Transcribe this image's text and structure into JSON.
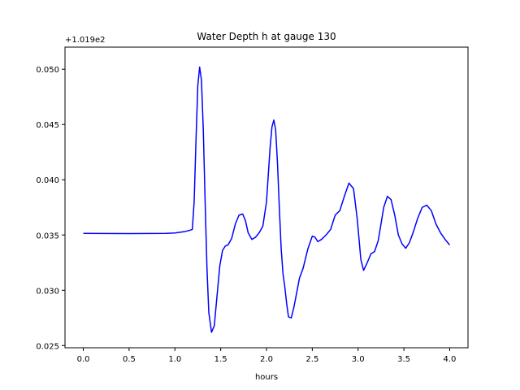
{
  "chart_data": {
    "type": "line",
    "title": "Water Depth h at gauge 130",
    "xlabel": "hours",
    "ylabel": "",
    "y_offset_label": "+1.019e2",
    "xlim": [
      -0.2,
      4.2
    ],
    "ylim": [
      0.0248,
      0.052
    ],
    "x_ticks": [
      0.0,
      0.5,
      1.0,
      1.5,
      2.0,
      2.5,
      3.0,
      3.5,
      4.0
    ],
    "x_tick_labels": [
      "0.0",
      "0.5",
      "1.0",
      "1.5",
      "2.0",
      "2.5",
      "3.0",
      "3.5",
      "4.0"
    ],
    "y_ticks": [
      0.025,
      0.03,
      0.035,
      0.04,
      0.045,
      0.05
    ],
    "y_tick_labels": [
      "0.025",
      "0.030",
      "0.035",
      "0.040",
      "0.045",
      "0.050"
    ],
    "grid": false,
    "series": [
      {
        "color": "#0000ff",
        "x": [
          0.0,
          0.5,
          0.9,
          1.0,
          1.1,
          1.15,
          1.19,
          1.21,
          1.23,
          1.25,
          1.27,
          1.29,
          1.31,
          1.33,
          1.35,
          1.37,
          1.4,
          1.43,
          1.46,
          1.49,
          1.52,
          1.55,
          1.58,
          1.62,
          1.66,
          1.7,
          1.74,
          1.77,
          1.8,
          1.84,
          1.88,
          1.92,
          1.96,
          2.0,
          2.02,
          2.04,
          2.06,
          2.08,
          2.1,
          2.12,
          2.14,
          2.16,
          2.18,
          2.2,
          2.22,
          2.24,
          2.27,
          2.3,
          2.33,
          2.36,
          2.4,
          2.45,
          2.5,
          2.53,
          2.56,
          2.6,
          2.65,
          2.7,
          2.75,
          2.8,
          2.85,
          2.9,
          2.95,
          2.99,
          3.03,
          3.06,
          3.1,
          3.14,
          3.18,
          3.22,
          3.25,
          3.28,
          3.32,
          3.36,
          3.4,
          3.44,
          3.48,
          3.52,
          3.56,
          3.6,
          3.65,
          3.7,
          3.75,
          3.8,
          3.85,
          3.9,
          3.95,
          4.0
        ],
        "y": [
          0.03515,
          0.03513,
          0.03515,
          0.03518,
          0.0353,
          0.0354,
          0.0355,
          0.038,
          0.0435,
          0.0485,
          0.0502,
          0.049,
          0.0445,
          0.038,
          0.032,
          0.028,
          0.0262,
          0.0268,
          0.0295,
          0.0322,
          0.0336,
          0.034,
          0.0341,
          0.0347,
          0.036,
          0.0368,
          0.0369,
          0.0363,
          0.0352,
          0.0346,
          0.0348,
          0.0352,
          0.0358,
          0.038,
          0.0405,
          0.043,
          0.0448,
          0.0454,
          0.0445,
          0.0415,
          0.0375,
          0.0338,
          0.0315,
          0.0303,
          0.0288,
          0.0276,
          0.0275,
          0.0285,
          0.0298,
          0.0311,
          0.032,
          0.0337,
          0.0349,
          0.0348,
          0.0344,
          0.0346,
          0.035,
          0.0355,
          0.0368,
          0.0372,
          0.0385,
          0.0397,
          0.0392,
          0.0365,
          0.0328,
          0.0318,
          0.0325,
          0.0333,
          0.0335,
          0.0345,
          0.036,
          0.0375,
          0.0385,
          0.0382,
          0.0368,
          0.035,
          0.0342,
          0.0338,
          0.0343,
          0.0352,
          0.0365,
          0.0375,
          0.0377,
          0.0372,
          0.036,
          0.0352,
          0.0346,
          0.0341
        ]
      }
    ]
  }
}
